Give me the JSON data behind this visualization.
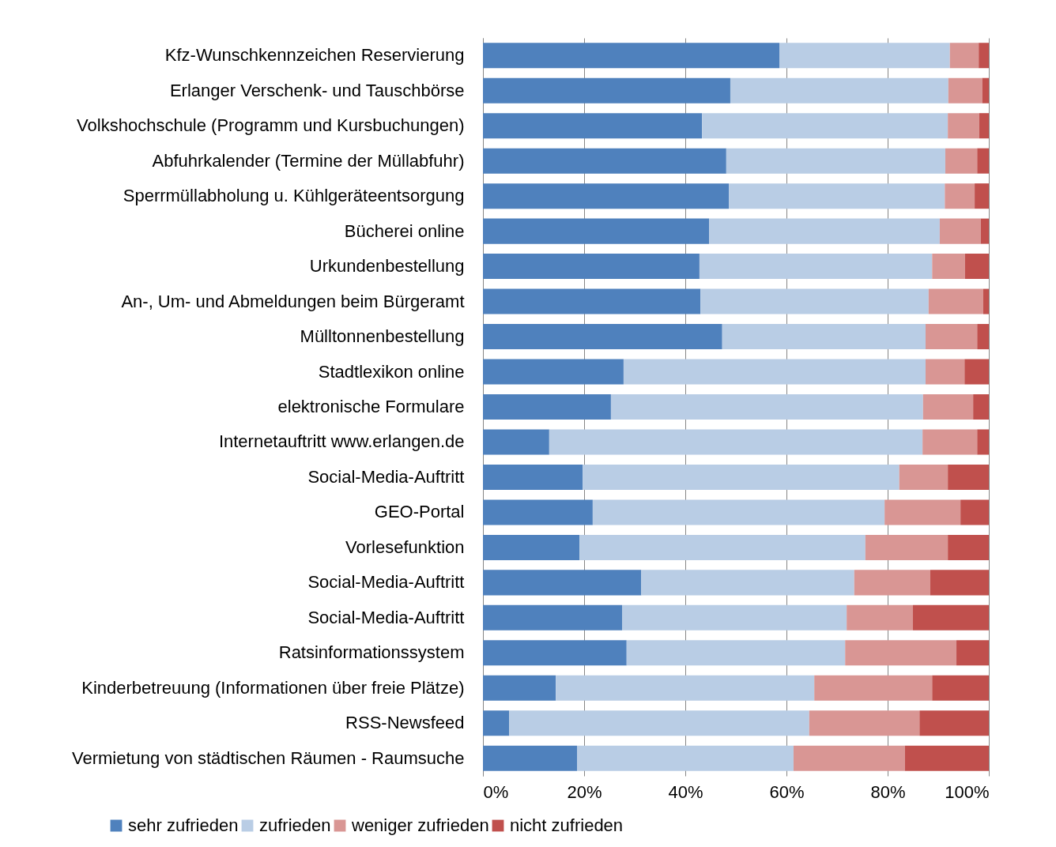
{
  "chart_data": {
    "type": "bar",
    "orientation": "horizontal",
    "stacked": true,
    "categories": [
      "Kfz-Wunschkennzeichen Reservierung",
      "Erlanger Verschenk- und Tauschbörse",
      "Volkshochschule (Programm und Kursbuchungen)",
      "Abfuhrkalender (Termine der Müllabfuhr)",
      "Sperrmüllabholung u. Kühlgeräteentsorgung",
      "Bücherei online",
      "Urkundenbestellung",
      "An-, Um- und Abmeldungen beim Bürgeramt",
      "Mülltonnenbestellung",
      "Stadtlexikon online",
      "elektronische Formulare",
      "Internetauftritt www.erlangen.de",
      "Social-Media-Auftritt",
      "GEO-Portal",
      "Vorlesefunktion",
      "Social-Media-Auftritt",
      "Social-Media-Auftritt",
      "Ratsinformationssystem",
      "Kinderbetreuung (Informationen über freie Plätze)",
      "RSS-Newsfeed",
      "Vermietung von städtischen Räumen - Raumsuche"
    ],
    "series": [
      {
        "name": "sehr zufrieden",
        "color": "#4f81bd",
        "values": [
          58.6,
          48.9,
          43.3,
          48.1,
          48.6,
          44.7,
          42.8,
          43.0,
          47.3,
          27.8,
          25.3,
          13.1,
          19.7,
          21.7,
          19.1,
          31.3,
          27.5,
          28.4,
          14.4,
          5.2,
          18.6
        ]
      },
      {
        "name": "zufrieden",
        "color": "#b9cde5",
        "values": [
          33.7,
          43.1,
          48.6,
          43.3,
          42.7,
          45.6,
          46.0,
          45.1,
          40.2,
          59.7,
          61.7,
          73.8,
          62.6,
          57.7,
          56.5,
          42.1,
          44.4,
          43.2,
          51.1,
          59.3,
          42.8
        ]
      },
      {
        "name": "weniger zufrieden",
        "color": "#d99694",
        "values": [
          5.7,
          6.7,
          6.2,
          6.3,
          5.9,
          8.1,
          6.5,
          10.8,
          10.2,
          7.7,
          9.9,
          10.8,
          9.6,
          15.0,
          16.3,
          15.0,
          13.1,
          22.0,
          23.3,
          21.8,
          22.0
        ]
      },
      {
        "name": "nicht zufrieden",
        "color": "#c0504d",
        "values": [
          2.0,
          1.3,
          1.9,
          2.3,
          2.8,
          1.6,
          4.7,
          1.1,
          2.3,
          4.8,
          3.1,
          2.3,
          8.1,
          5.6,
          8.1,
          11.6,
          15.0,
          6.4,
          11.2,
          13.7,
          16.6
        ]
      }
    ],
    "xlim": [
      0,
      100
    ],
    "xticks": [
      {
        "value": 0,
        "label": "0%"
      },
      {
        "value": 20,
        "label": "20%"
      },
      {
        "value": 40,
        "label": "40%"
      },
      {
        "value": 60,
        "label": "60%"
      },
      {
        "value": 80,
        "label": "80%"
      },
      {
        "value": 100,
        "label": "100%"
      }
    ],
    "grid": "x",
    "legend": "bottom"
  }
}
